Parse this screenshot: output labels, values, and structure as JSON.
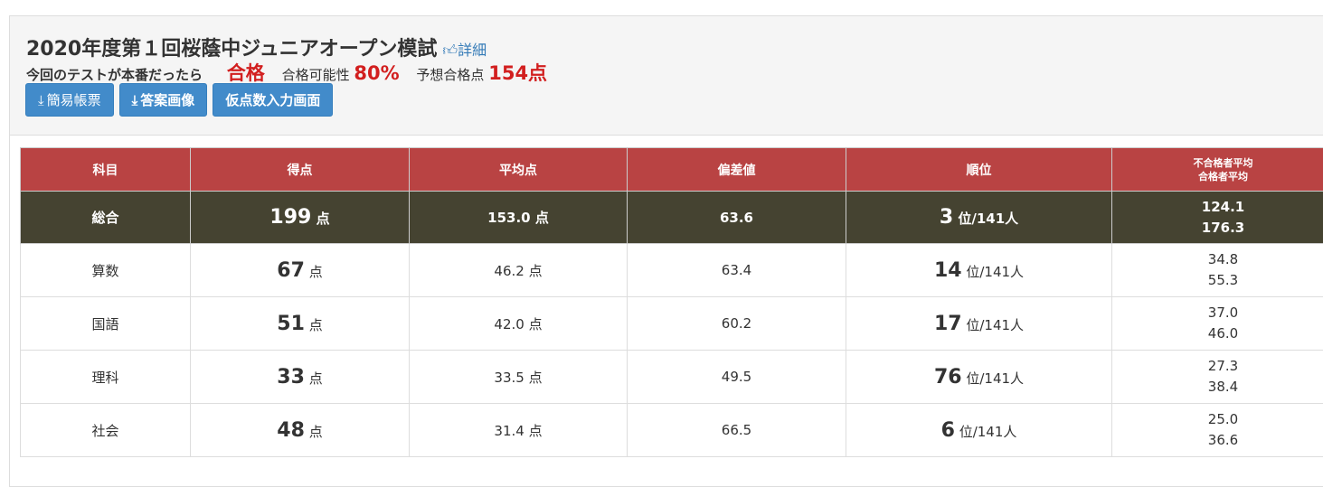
{
  "header": {
    "title": "2020年度第１回桜蔭中ジュニアオープン模試",
    "detail_link": "詳細",
    "if_real": "今回のテストが本番だったら",
    "result": "合格",
    "probability_label": "合格可能性",
    "probability": "80%",
    "expected_label": "予想合格点",
    "expected": "154点"
  },
  "buttons": {
    "simple_report": "簡易帳票",
    "answer_image": "答案画像",
    "provisional_input": "仮点数入力画面"
  },
  "table": {
    "headers": [
      "科目",
      "得点",
      "平均点",
      "偏差値",
      "順位",
      "不合格者平均",
      "合格者平均"
    ],
    "unit_point": "点",
    "unit_rank": "位",
    "total_people": "/141人",
    "rows": [
      {
        "subject": "総合",
        "score": "199",
        "avg": "153.0 点",
        "dev": "63.6",
        "rank": "3",
        "fail_avg": "124.1",
        "pass_avg": "176.3"
      },
      {
        "subject": "算数",
        "score": "67",
        "avg": "46.2 点",
        "dev": "63.4",
        "rank": "14",
        "fail_avg": "34.8",
        "pass_avg": "55.3"
      },
      {
        "subject": "国語",
        "score": "51",
        "avg": "42.0 点",
        "dev": "60.2",
        "rank": "17",
        "fail_avg": "37.0",
        "pass_avg": "46.0"
      },
      {
        "subject": "理科",
        "score": "33",
        "avg": "33.5 点",
        "dev": "49.5",
        "rank": "76",
        "fail_avg": "27.3",
        "pass_avg": "38.4"
      },
      {
        "subject": "社会",
        "score": "48",
        "avg": "31.4 点",
        "dev": "66.5",
        "rank": "6",
        "fail_avg": "25.0",
        "pass_avg": "36.6"
      }
    ]
  },
  "colors": {
    "header_red": "#b94343",
    "total_row": "#454331",
    "button_blue": "#428bca",
    "accent_red": "#d21f1f"
  }
}
